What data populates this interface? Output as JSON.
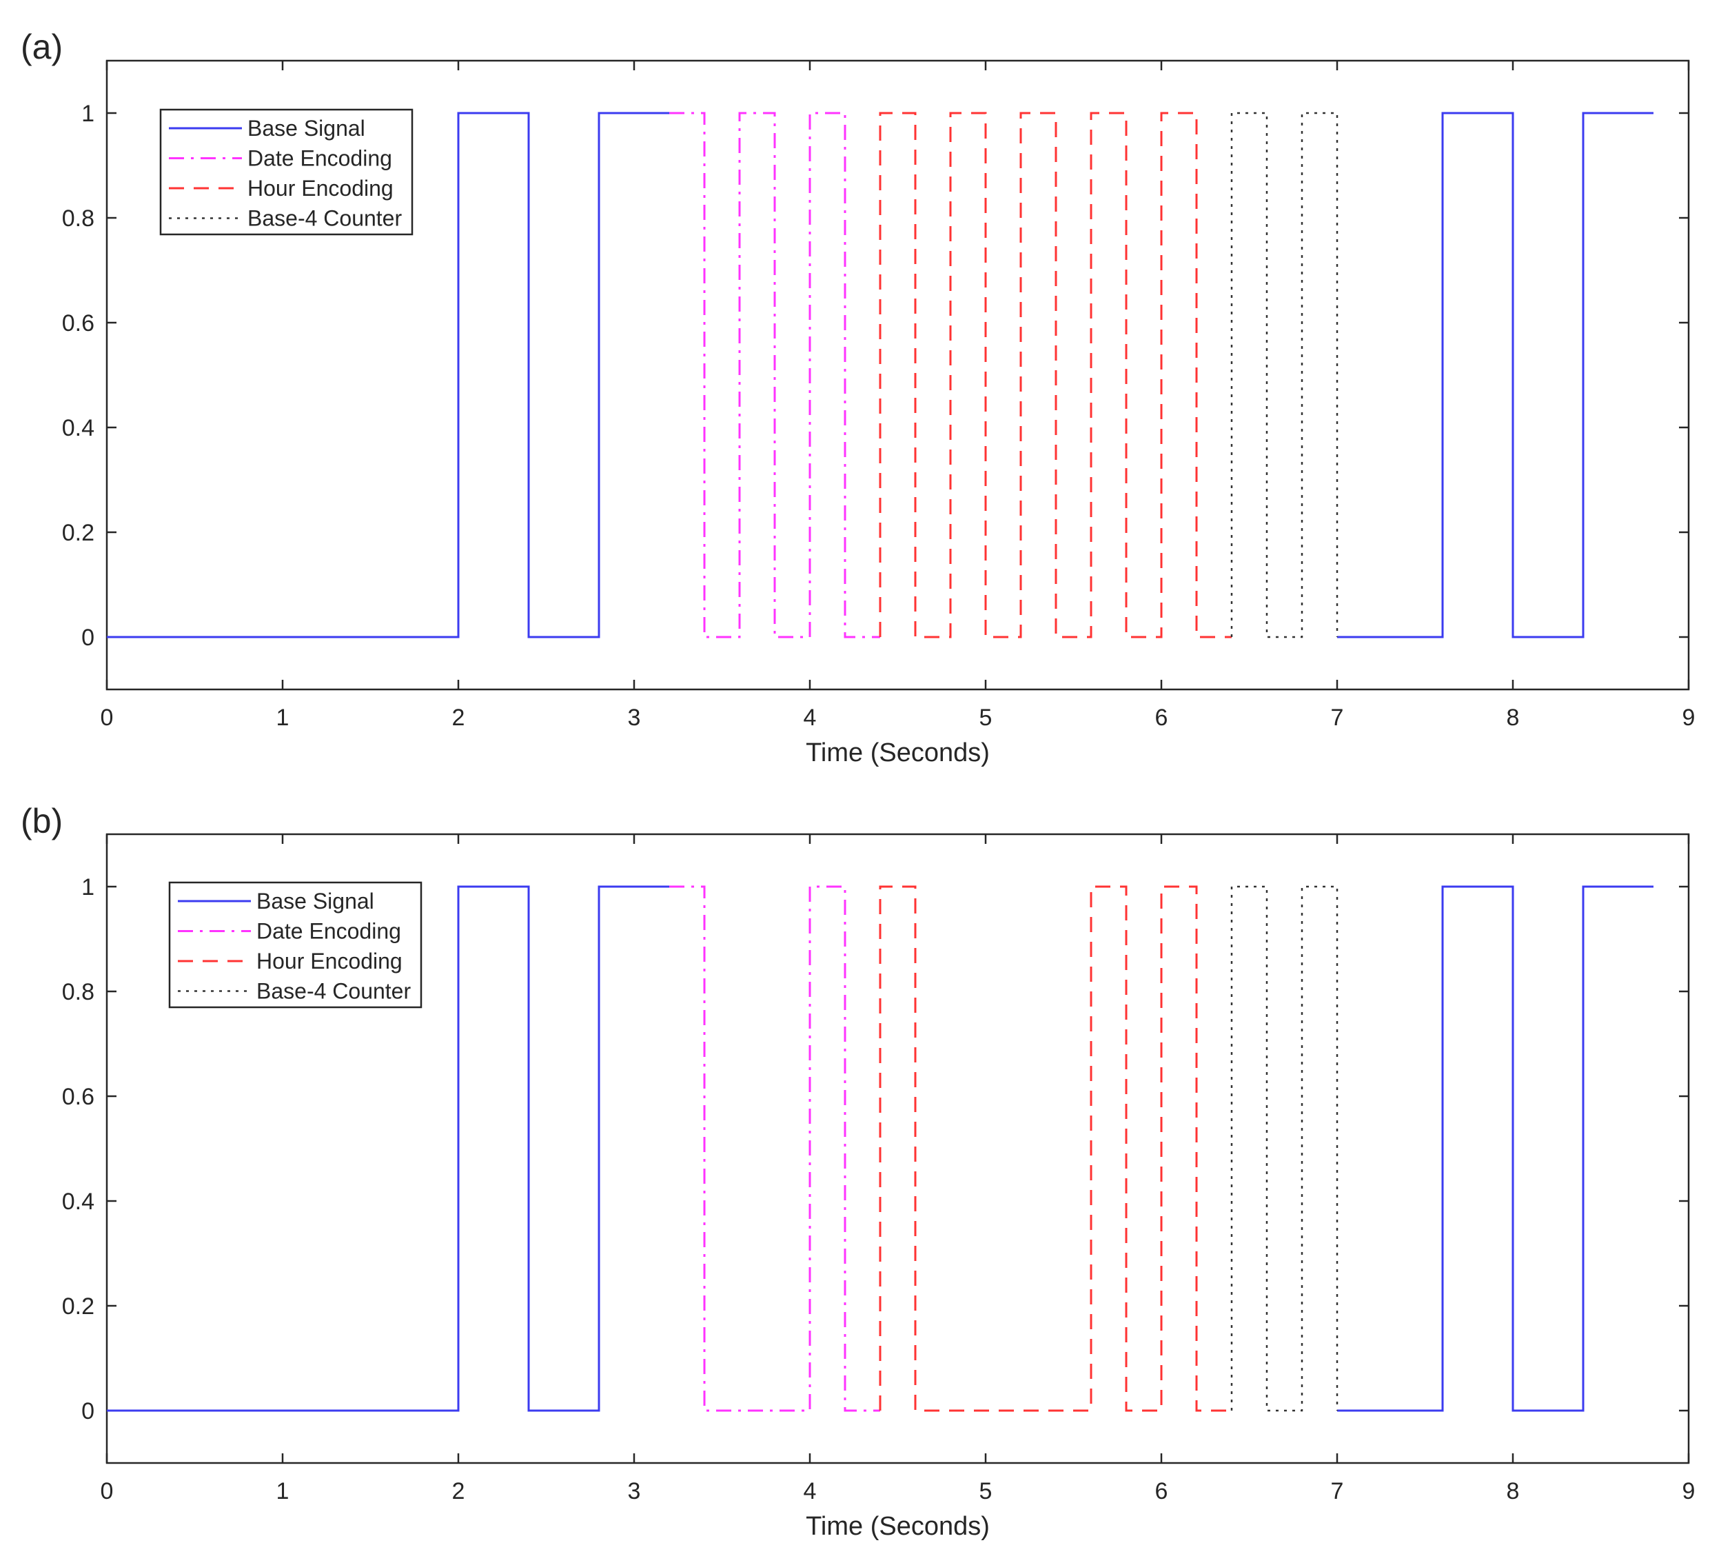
{
  "figure": {
    "colors": {
      "base": "#3b3bf0",
      "date": "#ff33ff",
      "hour": "#ff3333",
      "counter": "#333333",
      "axis": "#262626"
    }
  },
  "chart_data": [
    {
      "type": "line",
      "panel_label": "(a)",
      "xlabel": "Time (Seconds)",
      "ylabel": "",
      "xlim": [
        0,
        9
      ],
      "ylim": [
        -0.1,
        1.1
      ],
      "xticks": [
        0,
        1,
        2,
        3,
        4,
        5,
        6,
        7,
        8,
        9
      ],
      "yticks": [
        0,
        0.2,
        0.4,
        0.6,
        0.8,
        1
      ],
      "ytick_labels": [
        "0",
        "0.2",
        "0.4",
        "0.6",
        "0.8",
        "1"
      ],
      "grid": false,
      "legend_position": "top-left",
      "series": [
        {
          "name": "Base Signal",
          "style": "solid",
          "color": "base",
          "segments": [
            {
              "x": [
                0,
                2,
                2,
                2.4,
                2.4,
                2.8,
                2.8,
                3.2
              ],
              "y": [
                0,
                0,
                1,
                1,
                0,
                0,
                1,
                1
              ]
            },
            {
              "x": [
                7,
                7.6,
                7.6,
                8,
                8,
                8.4,
                8.4,
                8.8
              ],
              "y": [
                0,
                0,
                1,
                1,
                0,
                0,
                1,
                1
              ]
            }
          ]
        },
        {
          "name": "Date Encoding",
          "style": "dashdot",
          "color": "date",
          "segments": [
            {
              "x": [
                3.2,
                3.4,
                3.4,
                3.6,
                3.6,
                3.8,
                3.8,
                4.0,
                4.0,
                4.2,
                4.2,
                4.4
              ],
              "y": [
                1,
                1,
                0,
                0,
                1,
                1,
                0,
                0,
                1,
                1,
                0,
                0
              ]
            }
          ]
        },
        {
          "name": "Hour Encoding",
          "style": "dashed",
          "color": "hour",
          "segments": [
            {
              "x": [
                4.4,
                4.4,
                4.6,
                4.6,
                4.8,
                4.8,
                5.0,
                5.0,
                5.2,
                5.2,
                5.4,
                5.4,
                5.6,
                5.6,
                5.8,
                5.8,
                6.0,
                6.0,
                6.2,
                6.2,
                6.4
              ],
              "y": [
                0,
                1,
                1,
                0,
                0,
                1,
                1,
                0,
                0,
                1,
                1,
                0,
                0,
                1,
                1,
                0,
                0,
                1,
                1,
                0,
                0
              ]
            }
          ]
        },
        {
          "name": "Base-4 Counter",
          "style": "dotted",
          "color": "counter",
          "segments": [
            {
              "x": [
                6.4,
                6.4,
                6.6,
                6.6,
                6.8,
                6.8,
                7.0,
                7.0
              ],
              "y": [
                0,
                1,
                1,
                0,
                0,
                1,
                1,
                0
              ]
            }
          ]
        }
      ]
    },
    {
      "type": "line",
      "panel_label": "(b)",
      "xlabel": "Time (Seconds)",
      "ylabel": "",
      "xlim": [
        0,
        9
      ],
      "ylim": [
        -0.1,
        1.1
      ],
      "xticks": [
        0,
        1,
        2,
        3,
        4,
        5,
        6,
        7,
        8,
        9
      ],
      "yticks": [
        0,
        0.2,
        0.4,
        0.6,
        0.8,
        1
      ],
      "ytick_labels": [
        "0",
        "0.2",
        "0.4",
        "0.6",
        "0.8",
        "1"
      ],
      "grid": false,
      "legend_position": "top-left",
      "series": [
        {
          "name": "Base Signal",
          "style": "solid",
          "color": "base",
          "segments": [
            {
              "x": [
                0,
                2,
                2,
                2.4,
                2.4,
                2.8,
                2.8,
                3.2
              ],
              "y": [
                0,
                0,
                1,
                1,
                0,
                0,
                1,
                1
              ]
            },
            {
              "x": [
                7,
                7.6,
                7.6,
                8,
                8,
                8.4,
                8.4,
                8.8
              ],
              "y": [
                0,
                0,
                1,
                1,
                0,
                0,
                1,
                1
              ]
            }
          ]
        },
        {
          "name": "Date Encoding",
          "style": "dashdot",
          "color": "date",
          "segments": [
            {
              "x": [
                3.2,
                3.4,
                3.4,
                4.0,
                4.0,
                4.2,
                4.2,
                4.4
              ],
              "y": [
                1,
                1,
                0,
                0,
                1,
                1,
                0,
                0
              ]
            }
          ]
        },
        {
          "name": "Hour Encoding",
          "style": "dashed",
          "color": "hour",
          "segments": [
            {
              "x": [
                4.4,
                4.4,
                4.6,
                4.6,
                5.6,
                5.6,
                5.8,
                5.8,
                6.0,
                6.0,
                6.2,
                6.2,
                6.4
              ],
              "y": [
                0,
                1,
                1,
                0,
                0,
                1,
                1,
                0,
                0,
                1,
                1,
                0,
                0
              ]
            }
          ]
        },
        {
          "name": "Base-4 Counter",
          "style": "dotted",
          "color": "counter",
          "segments": [
            {
              "x": [
                6.4,
                6.4,
                6.6,
                6.6,
                6.8,
                6.8,
                7.0,
                7.0
              ],
              "y": [
                0,
                1,
                1,
                0,
                0,
                1,
                1,
                0
              ]
            }
          ]
        }
      ]
    }
  ]
}
